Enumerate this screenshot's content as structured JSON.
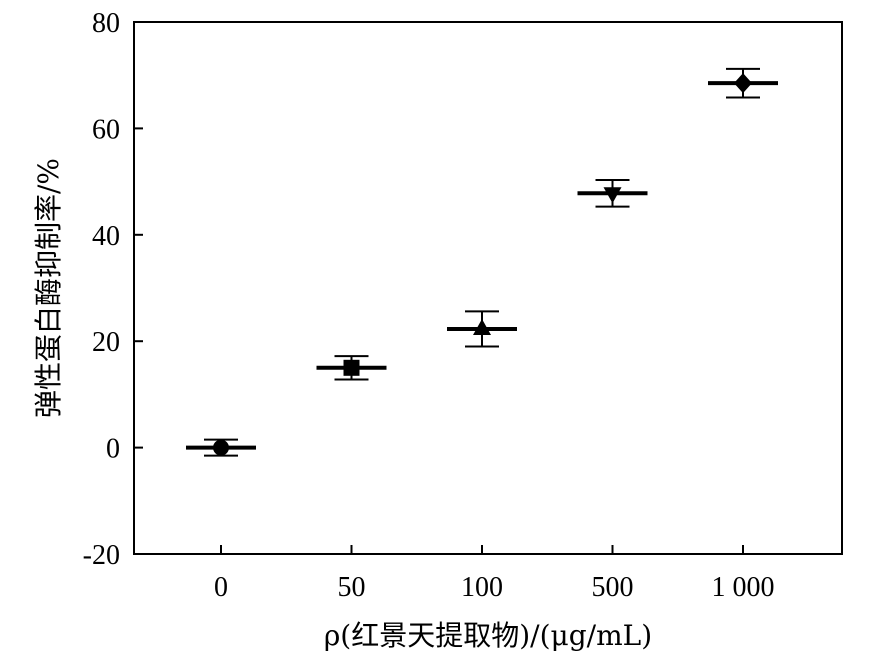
{
  "chart_data": {
    "type": "scatter",
    "categories": [
      "0",
      "50",
      "100",
      "500",
      "1 000"
    ],
    "values": [
      0,
      15,
      22.3,
      47.8,
      68.5
    ],
    "errors": [
      1.5,
      2.2,
      3.3,
      2.5,
      2.7
    ],
    "markers": [
      "circle",
      "square",
      "triangle-up",
      "triangle-down",
      "diamond"
    ],
    "title": "",
    "xlabel": "ρ(红景天提取物)/(μg/mL)",
    "ylabel": "弹性蛋白酶抑制率/%",
    "ylim": [
      -20,
      80
    ],
    "yticks": [
      "-20",
      "0",
      "20",
      "40",
      "60",
      "80"
    ],
    "grid": false,
    "legend": false
  }
}
